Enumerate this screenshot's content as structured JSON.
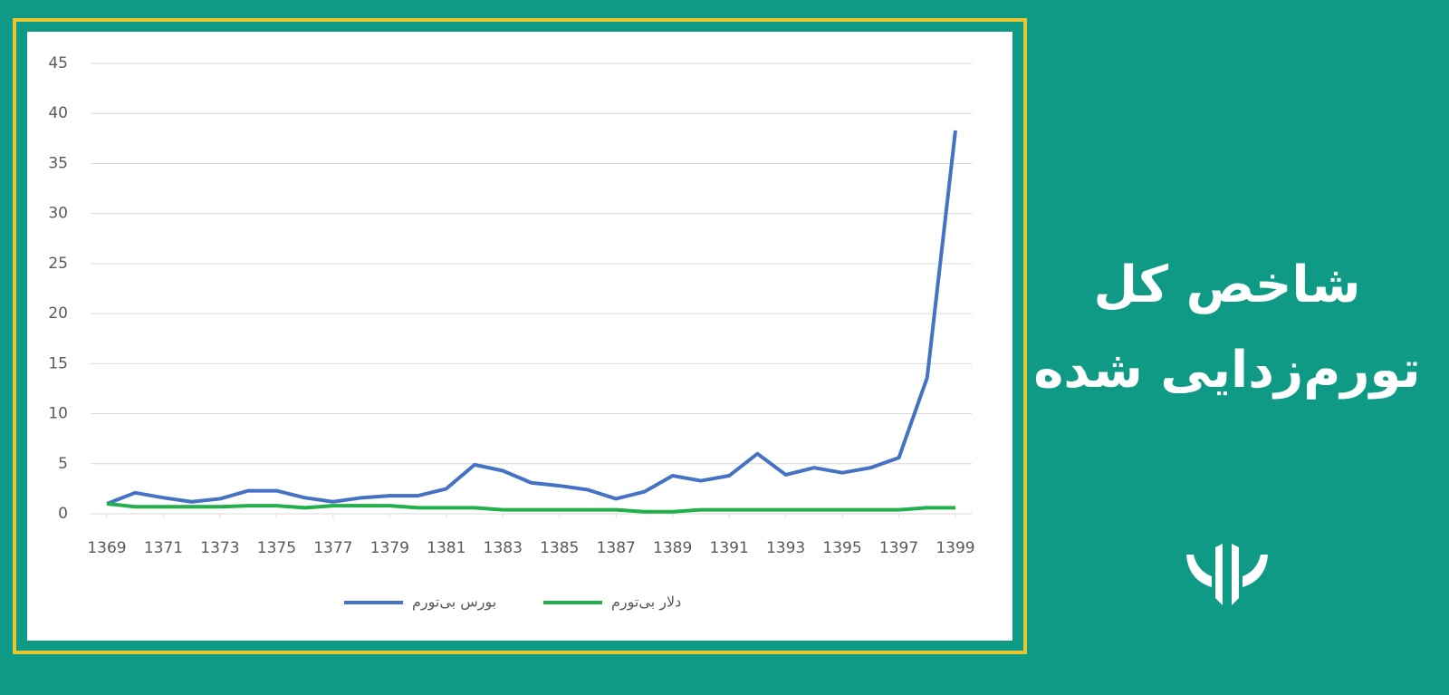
{
  "chart_data": {
    "type": "line",
    "x": [
      1369,
      1370,
      1371,
      1372,
      1373,
      1374,
      1375,
      1376,
      1377,
      1378,
      1379,
      1380,
      1381,
      1382,
      1383,
      1384,
      1385,
      1386,
      1387,
      1388,
      1389,
      1390,
      1391,
      1392,
      1393,
      1394,
      1395,
      1396,
      1397,
      1398,
      1399
    ],
    "xlim": [
      1369,
      1399
    ],
    "xticks": [
      1369,
      1371,
      1373,
      1375,
      1377,
      1379,
      1381,
      1383,
      1385,
      1387,
      1389,
      1391,
      1393,
      1395,
      1397,
      1399
    ],
    "ylim": [
      0,
      45
    ],
    "yticks": [
      0,
      5,
      10,
      15,
      20,
      25,
      30,
      35,
      40,
      45
    ],
    "grid": true,
    "legend": "bottom",
    "series": [
      {
        "name": "بورس بی‌تورم",
        "color": "#4472c4",
        "values": [
          1.0,
          2.1,
          1.6,
          1.2,
          1.5,
          2.3,
          2.3,
          1.6,
          1.2,
          1.6,
          1.8,
          1.8,
          2.5,
          4.9,
          4.3,
          3.1,
          2.8,
          2.4,
          1.5,
          2.2,
          3.8,
          3.3,
          3.8,
          6.0,
          3.9,
          4.6,
          4.1,
          4.6,
          5.6,
          13.6,
          38.3
        ]
      },
      {
        "name": "دلار بی‌تورم",
        "color": "#22b04b",
        "values": [
          1.0,
          0.7,
          0.7,
          0.7,
          0.7,
          0.8,
          0.8,
          0.6,
          0.8,
          0.8,
          0.8,
          0.6,
          0.6,
          0.6,
          0.4,
          0.4,
          0.4,
          0.4,
          0.4,
          0.2,
          0.2,
          0.4,
          0.4,
          0.4,
          0.4,
          0.4,
          0.4,
          0.4,
          0.4,
          0.6,
          0.6
        ]
      }
    ]
  },
  "banner": {
    "title_lines": [
      "شاخص کل",
      "تورم‌زدایی شده"
    ]
  }
}
